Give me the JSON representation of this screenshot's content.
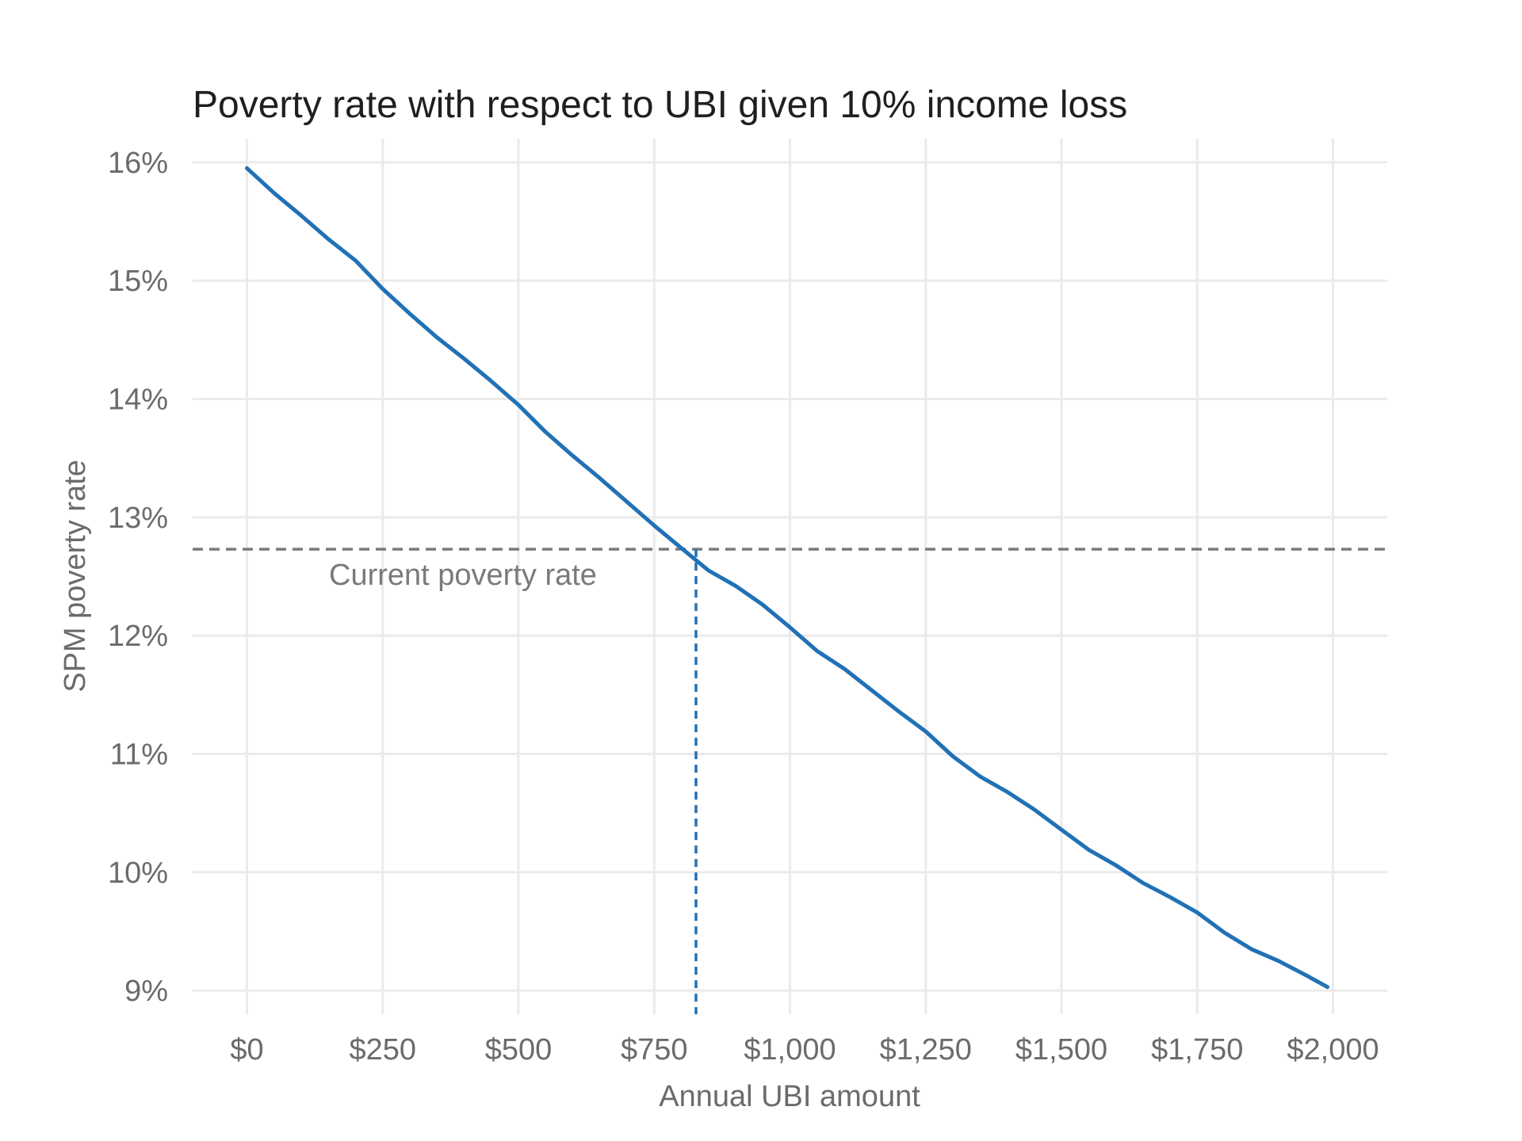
{
  "chart_data": {
    "type": "line",
    "title": "Poverty rate with respect to UBI given 10% income loss",
    "xlabel": "Annual UBI amount",
    "ylabel": "SPM poverty rate",
    "xlim": [
      -100,
      2100
    ],
    "ylim": [
      8.8,
      16.2
    ],
    "x_ticks": [
      0,
      250,
      500,
      750,
      1000,
      1250,
      1500,
      1750,
      2000
    ],
    "x_tick_labels": [
      "$0",
      "$250",
      "$500",
      "$750",
      "$1,000",
      "$1,250",
      "$1,500",
      "$1,750",
      "$2,000"
    ],
    "y_ticks": [
      9,
      10,
      11,
      12,
      13,
      14,
      15,
      16
    ],
    "y_tick_labels": [
      "9%",
      "10%",
      "11%",
      "12%",
      "13%",
      "14%",
      "15%",
      "16%"
    ],
    "grid": true,
    "series": [
      {
        "color": "#2171b5",
        "x": [
          0,
          50,
          100,
          150,
          200,
          250,
          300,
          350,
          400,
          450,
          500,
          550,
          600,
          650,
          700,
          750,
          800,
          850,
          900,
          950,
          1000,
          1050,
          1100,
          1150,
          1200,
          1250,
          1300,
          1350,
          1400,
          1450,
          1500,
          1550,
          1600,
          1650,
          1700,
          1750,
          1800,
          1850,
          1900,
          1950,
          1990
        ],
        "y": [
          15.95,
          15.74,
          15.55,
          15.35,
          15.17,
          14.93,
          14.72,
          14.52,
          14.34,
          14.15,
          13.95,
          13.72,
          13.52,
          13.33,
          13.13,
          12.93,
          12.74,
          12.55,
          12.42,
          12.26,
          12.07,
          11.87,
          11.72,
          11.54,
          11.36,
          11.19,
          10.98,
          10.81,
          10.68,
          10.53,
          10.36,
          10.19,
          10.06,
          9.91,
          9.79,
          9.66,
          9.49,
          9.35,
          9.25,
          9.13,
          9.03
        ]
      }
    ],
    "reference_lines": [
      {
        "orientation": "horizontal",
        "value": 12.73,
        "color": "#7a7a7a",
        "style": "dashed",
        "label": "Current poverty rate"
      },
      {
        "orientation": "vertical",
        "value": 827,
        "color": "#2171b5",
        "style": "dashed"
      }
    ]
  }
}
